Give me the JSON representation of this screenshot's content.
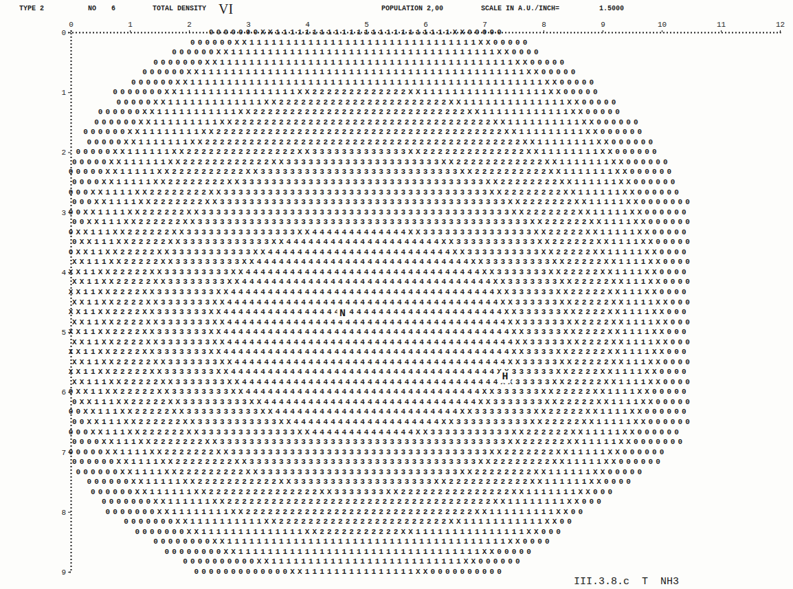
{
  "chart_data": {
    "type": "density_map",
    "header": [
      "TYPE 2",
      "NO",
      "6",
      "TOTAL DENSITY",
      "POPULATION 2,00",
      "SCALE IN A.U./INCH=",
      "1.5000"
    ],
    "handwritten": "VI",
    "caption": "III.3.8.c  T  NH3",
    "xlim": [
      0,
      12
    ],
    "xticks": [
      0,
      1,
      2,
      3,
      4,
      5,
      6,
      7,
      8,
      9,
      10,
      11,
      12
    ],
    "ylim": [
      0,
      9
    ],
    "yticks": [
      0,
      1,
      2,
      3,
      4,
      5,
      6,
      7,
      8,
      9
    ],
    "annotations": [
      {
        "text": "N",
        "x": 4.6,
        "y": 4.7
      },
      {
        "text": "H",
        "x": 7.35,
        "y": 5.75
      }
    ],
    "rows": [
      {
        "y": 0,
        "x": 2.375,
        "text": "0000000XX111111111111111111111111XX00000"
      },
      {
        "y": 0.167,
        "x": 2.0625,
        "text": "000000XX1111111111111111111111111111111XX00000"
      },
      {
        "y": 0.333,
        "x": 1.75,
        "text": "000000XX111111111111111111111111111111111111XX0000"
      },
      {
        "y": 0.5,
        "x": 1.4375,
        "text": "0000000XX1111111111111111111111111111111111111111XX00000"
      },
      {
        "y": 0.667,
        "x": 1.25,
        "text": "000000XX11111111111111111111111111111111111111111111XX00000"
      },
      {
        "y": 0.833,
        "x": 1.0625,
        "text": "000000XX111111111111111111111111111111111111111111111111XX00000"
      },
      {
        "y": 1,
        "x": 0.75,
        "text": "0000000XX1111111111111111XX2222222222222XX11111111111111111XX00000"
      },
      {
        "y": 1.167,
        "x": 0.8125,
        "text": "00000XX1111111111111XX22222222222222222222222XX11111111111111XX00000"
      },
      {
        "y": 1.333,
        "x": 0.5,
        "text": "000000XX11111111111XX22222222222222222222222222222XX111111111111XX00000"
      },
      {
        "y": 1.5,
        "x": 0.4375,
        "text": "000000XX111111111XX22222222222222222222222222222222222XX1111111111XX000000"
      },
      {
        "y": 1.667,
        "x": 0.25,
        "text": "000000XX11111111XX222222222222222222222222222222222222222XX111111111XX000000"
      },
      {
        "y": 1.833,
        "x": 0.3125,
        "text": "00000XX1111111XX2222222222222222222222222222222222222222222XX11111111XX000000"
      },
      {
        "y": 2,
        "x": 0.125,
        "text": "00000XX111111XX222222222222222XX3333333333333XX22222222222222XX11111111XX000000"
      },
      {
        "y": 2.167,
        "x": 0.0625,
        "text": "00000XX111111XX222222222222XX333333333333333333333XX222222222222XX1111111XX000000"
      },
      {
        "y": 2.333,
        "x": 0,
        "text": "00000XX11111XX2222222222XX333333333333333333333333333XX2222222222XX1111111XX000000"
      },
      {
        "y": 2.5,
        "x": 0.0625,
        "text": "0000XX11111XX22222222XX333333333333333333333333333333333XX22222222XX111111XX000000"
      },
      {
        "y": 2.667,
        "x": 0,
        "text": "000XX1111XX22222222XX333333333333333333333333333333333333XX22222222XX111111XX000000"
      },
      {
        "y": 2.833,
        "x": 0.0625,
        "text": "000XX1111XX2222222XX333333333333333333333333333333333333333XX2222222XX11111XX0000000"
      },
      {
        "y": 3,
        "x": 0,
        "text": "00XX1111XX222222XX333333333333333333333333333333333333333333XX2222222XX11111XX000000"
      },
      {
        "y": 3.167,
        "x": 0.0625,
        "text": "00XX111XX222222XX333333333333333333333333333333333333333333333XX222222XX1111XX000000"
      },
      {
        "y": 3.333,
        "x": 0,
        "text": "0XX111XX222222XX333333333333333XX4444444444444XX333333333333333XX22222XX11111XX00000"
      },
      {
        "y": 3.5,
        "x": 0.0625,
        "text": "0XX111XX22222XX333333333333XX444444444444444444444XX33333333333XX222222XX1111XX00000"
      },
      {
        "y": 3.667,
        "x": 0,
        "text": "0XX11XX22222XX33333333333XX4444444444444444444444444XX3333333333XX22222XX11111XX0000"
      },
      {
        "y": 3.833,
        "x": 0.0625,
        "text": "XX111XX22222XX333333333XX44444444444444444444444444444XX333333333XX22222XX1111XX0000"
      },
      {
        "y": 4,
        "x": 0,
        "text": "XX11XX22222XX333333333XX44444444444444444444444444444444XX3333333XX22222XX1111XX0000"
      },
      {
        "y": 4.167,
        "x": 0.0625,
        "text": "XX11XX22222XX33333333XX4444444444444444444444444444444444XX3333333XX22222XX111XX0000"
      },
      {
        "y": 4.333,
        "x": 0,
        "text": "XX11XX2222XX33333333XX444444444444444444444444444444444444XX333333XX22222XX111XX0000"
      },
      {
        "y": 4.5,
        "x": 0.0625,
        "text": "XX11XX2222XX3333333XX4444444444444444444444444444444444444XX333333XX22222XX1111XX000"
      },
      {
        "y": 4.667,
        "x": 0,
        "text": "XX11XX2222XX3333333XX44444444444444444444444444444444444444XX333333XX2222XX1111XX000"
      },
      {
        "y": 4.833,
        "x": 0.0625,
        "text": "XX11XX2222XX3333333XX44444444444444444444444444444444444444XX333333XX2222XX1111XX000"
      },
      {
        "y": 5,
        "x": 0,
        "text": "XX11XX2222XX3333333XX444444444444444444444444444444444444444XX33333XX2222XX1111XX000"
      },
      {
        "y": 5.167,
        "x": 0.0625,
        "text": "XX11XX2222XX3333333XX444444444444444444444444444444444444444XX33333XX2222XX1111XX000"
      },
      {
        "y": 5.333,
        "x": 0,
        "text": "XX11XX2222XX3333333XX444444444444444444444444444444444444444XX3333XX22222XX1111XX000"
      },
      {
        "y": 5.5,
        "x": 0.0625,
        "text": "XX11XX22222XX3333333XX4444444444444444444444444444444444444XX33333XX22222XX111XX0000"
      },
      {
        "y": 5.667,
        "x": 0,
        "text": "XX11XX22222XX3333333XX444444444444444444444444444444444444XX333333XX2222XX1111XX0000"
      },
      {
        "y": 5.833,
        "x": 0.0625,
        "text": "XX111XX22222XX3333333XX44444444444444444444444444444444444XX33333XX22222XX1111XX0000"
      },
      {
        "y": 6,
        "x": 0,
        "text": "0XX11XX22222XX33333333XX44444444444444444444444444444444XX333333XX22222XX1111XX00000"
      },
      {
        "y": 6.167,
        "x": 0.0625,
        "text": "0XX111XX22222XX333333333XX44444444444444444444444444444XX3333333XX22222XX1111XX00000"
      },
      {
        "y": 6.333,
        "x": 0,
        "text": "00XX111XX22222XX3333333333XX4444444444444444444444444XX33333333XX22222XX1111XX000000"
      },
      {
        "y": 6.5,
        "x": 0.0625,
        "text": "00XX111XX222222XX33333333333XX44444444444444444444XX3333333333XX22222XX11111XX000000"
      },
      {
        "y": 6.667,
        "x": 0,
        "text": "000XX111XX222222XX3333333333333XX44444444444444XX33333333333XX222222XX11111XX000000"
      },
      {
        "y": 6.833,
        "x": 0.0625,
        "text": "0000XX111XX2222222XX333333333333333333333333333333333333333XX222222XX11111XX0000000"
      },
      {
        "y": 7,
        "x": 0,
        "text": "00000XX1111XX2222222XX33333333333333333333333333333333333XX2222222XX11111XX000000"
      },
      {
        "y": 7.167,
        "x": 0.0625,
        "text": "000000XX1111XX22222222XX3333333333333333333333333333333XX22222222XX11111XX000000"
      },
      {
        "y": 7.333,
        "x": 0.125,
        "text": "000000XX1111XX222222222XX333333333333333333333333333XX22222222XX111111XX00000"
      },
      {
        "y": 7.5,
        "x": 0.3125,
        "text": "000000XX11111XX22222222222XX3333333333333333333XX22222222222XX111111XX0000"
      },
      {
        "y": 7.667,
        "x": 0.375,
        "text": "000000XX111111XX222222222222222XX3333333XX222222222222222XX1111111XX000"
      },
      {
        "y": 7.833,
        "x": 0.5625,
        "text": "0000000XX111111XX222222222222222222222222222222222222XX11111111XX000"
      },
      {
        "y": 8,
        "x": 0.625,
        "text": "0000000XX11111111XX2222222222222222222222222222222XX111111111XX00"
      },
      {
        "y": 8.167,
        "x": 0.9375,
        "text": "0000000XX1111111111XX22222222222222222222222XX11111111111XX00"
      },
      {
        "y": 8.333,
        "x": 1.125,
        "text": "0000000XX11111111111111XX22222222222XX111111111111111XX000"
      },
      {
        "y": 8.5,
        "x": 1.4375,
        "text": "00000000XX11111111111111111111111111111111111111XX0000"
      },
      {
        "y": 8.667,
        "x": 1.625,
        "text": "00000000XX111111111111111111111111111111111XX00000"
      },
      {
        "y": 8.833,
        "x": 1.9375,
        "text": "0000000000XX11111111111111111111111111XX000000"
      },
      {
        "y": 9,
        "x": 2.125,
        "text": "0000000000000XX111111111111111XX0000000000"
      }
    ]
  }
}
